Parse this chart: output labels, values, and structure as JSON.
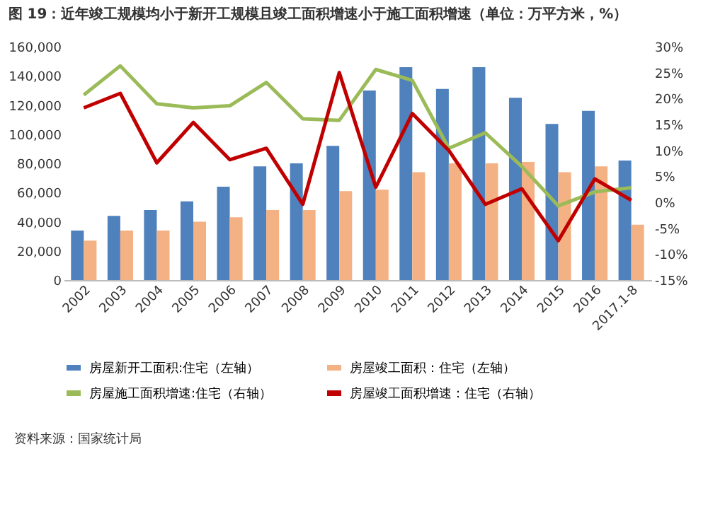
{
  "chart_data": {
    "type": "bar",
    "title": "图 19：近年竣工规模均小于新开工规模且竣工面积增速小于施工面积增速（单位：万平方米，%）",
    "categories": [
      "2002",
      "2003",
      "2004",
      "2005",
      "2006",
      "2007",
      "2008",
      "2009",
      "2010",
      "2011",
      "2012",
      "2013",
      "2014",
      "2015",
      "2016",
      "2017.1-8"
    ],
    "series": [
      {
        "name": "房屋新开工面积:住宅（左轴）",
        "color": "#4f81bd",
        "values": [
          34000,
          44000,
          48000,
          54000,
          64000,
          78000,
          80000,
          92000,
          130000,
          146000,
          131000,
          146000,
          125000,
          107000,
          116000,
          82000
        ]
      },
      {
        "name": "房屋竣工面积：住宅（左轴）",
        "color": "#f4b183",
        "values": [
          27000,
          34000,
          34000,
          40000,
          43000,
          48000,
          48000,
          61000,
          62000,
          74000,
          80000,
          80000,
          81000,
          74000,
          78000,
          38000
        ]
      },
      {
        "name": "房屋施工面积增速:住宅（右轴）",
        "type": "line",
        "axis": "y2",
        "color": "#9bbb59",
        "values": [
          20.7,
          26.3,
          19,
          18.2,
          18.6,
          23.1,
          16.1,
          15.8,
          25.6,
          23.5,
          10.4,
          13.4,
          6.9,
          -0.7,
          2,
          2.8
        ]
      },
      {
        "name": "房屋竣工面积增速：住宅（右轴）",
        "type": "line",
        "axis": "y2",
        "color": "#c00000",
        "values": [
          18.2,
          21,
          7.6,
          15.4,
          8.2,
          10.4,
          -0.4,
          25,
          2.9,
          17.1,
          10,
          -0.4,
          2.6,
          -7.4,
          4.5,
          0.4
        ]
      }
    ],
    "ylim": [
      0,
      160000
    ],
    "yticks": [
      {
        "value": 0,
        "label": "0"
      },
      {
        "value": 20000,
        "label": "20,000"
      },
      {
        "value": 40000,
        "label": "40,000"
      },
      {
        "value": 60000,
        "label": "60,000"
      },
      {
        "value": 80000,
        "label": "80,000"
      },
      {
        "value": 100000,
        "label": "100,000"
      },
      {
        "value": 120000,
        "label": "120,000"
      },
      {
        "value": 140000,
        "label": "140,000"
      },
      {
        "value": 160000,
        "label": "160,000"
      }
    ],
    "y2lim": [
      -15,
      30
    ],
    "y2ticks": [
      {
        "value": -15,
        "label": "-15%"
      },
      {
        "value": -10,
        "label": "-10%"
      },
      {
        "value": -5,
        "label": "-5%"
      },
      {
        "value": 0,
        "label": "0%"
      },
      {
        "value": 5,
        "label": "5%"
      },
      {
        "value": 10,
        "label": "10%"
      },
      {
        "value": 15,
        "label": "15%"
      },
      {
        "value": 20,
        "label": "20%"
      },
      {
        "value": 25,
        "label": "25%"
      },
      {
        "value": 30,
        "label": "30%"
      }
    ],
    "legend": "bottom",
    "annotations": [
      "资料来源：国家统计局"
    ]
  }
}
